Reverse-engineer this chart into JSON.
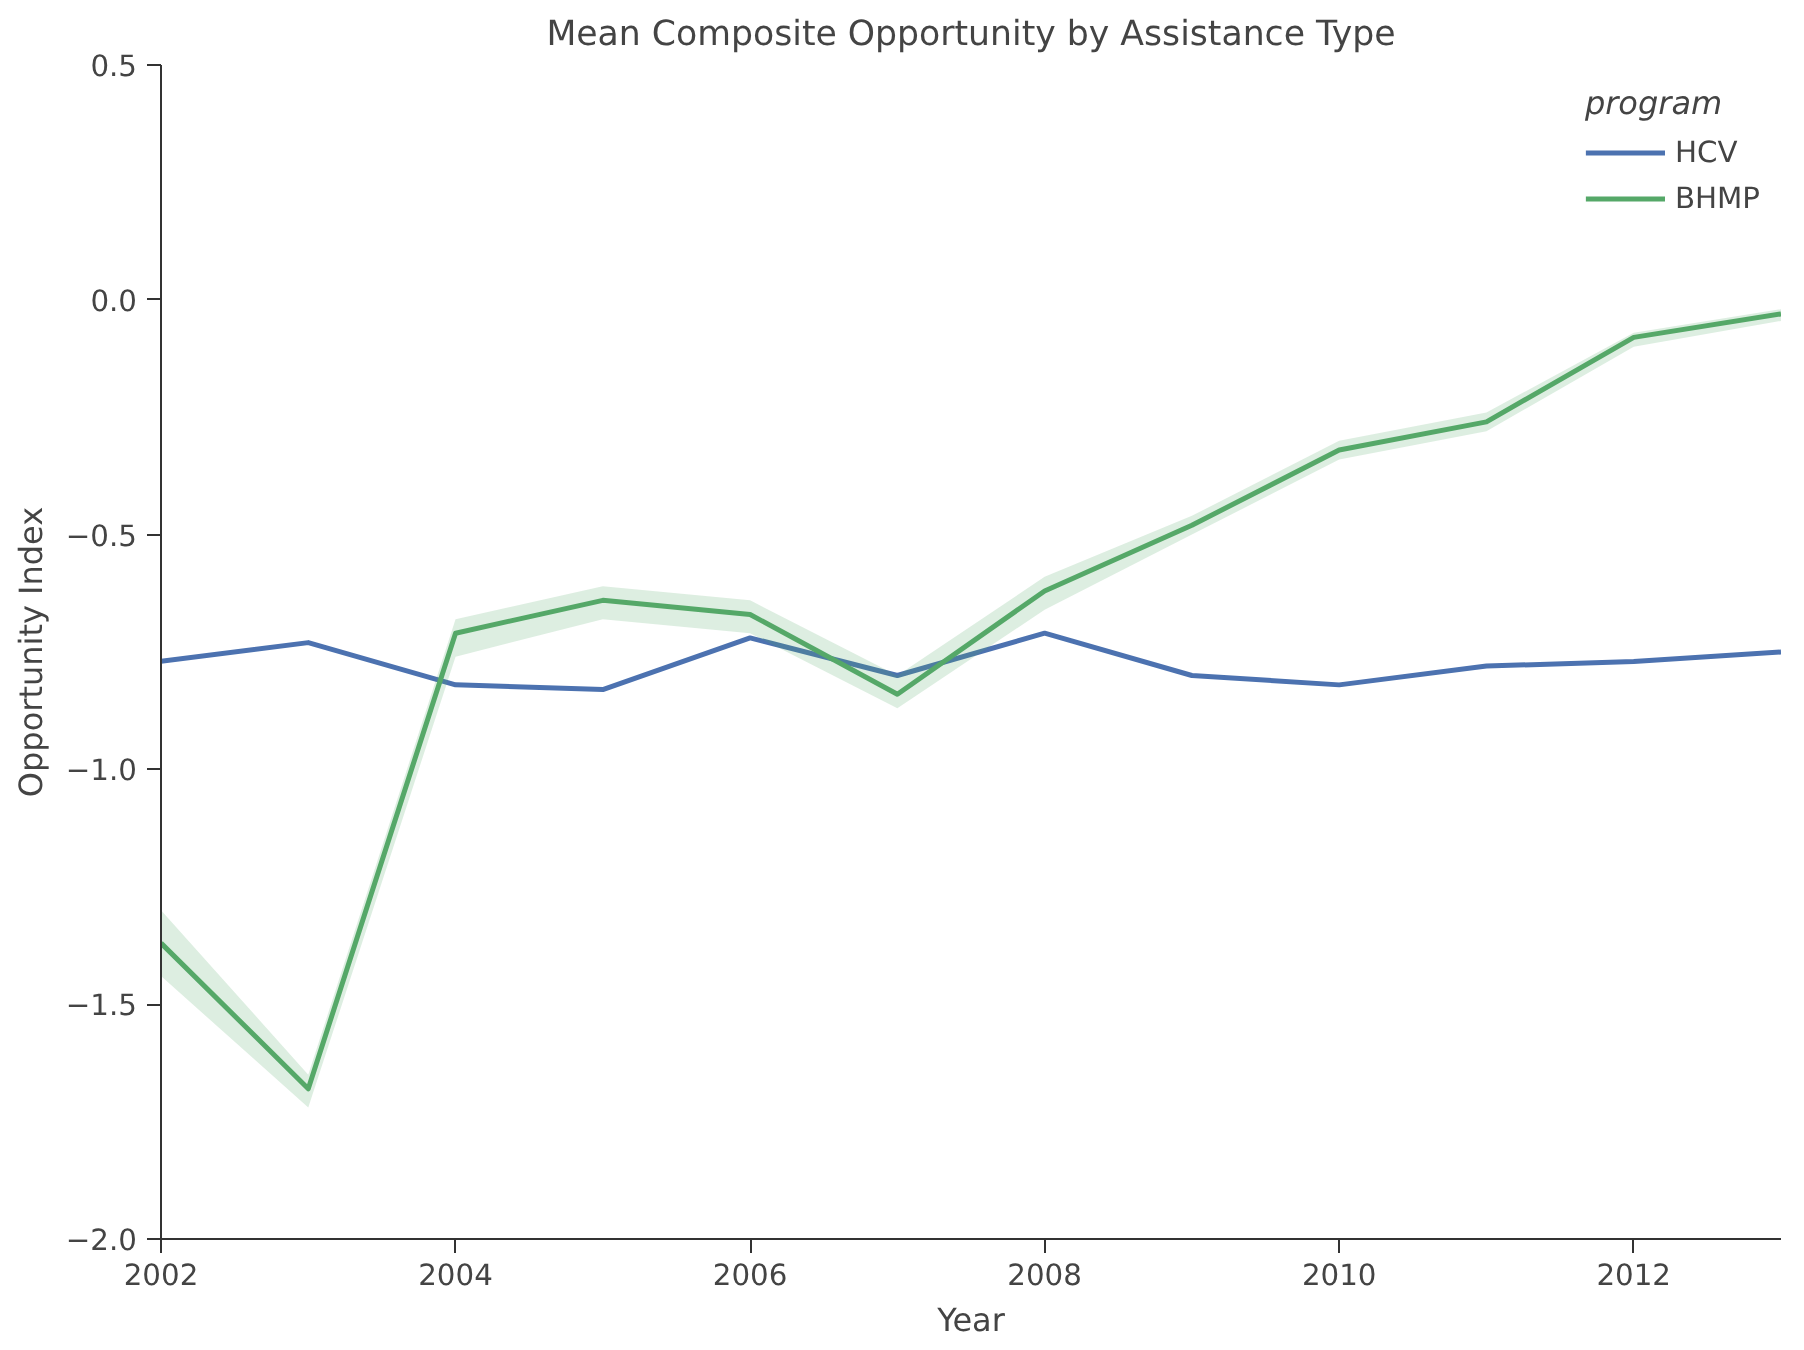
{
  "chart_data": {
    "type": "line",
    "title": "Mean Composite Opportunity by Assistance Type",
    "xlabel": "Year",
    "ylabel": "Opportunity Index",
    "legend_title": "program",
    "legend": "top right",
    "grid": false,
    "x": [
      2002,
      2003,
      2004,
      2005,
      2006,
      2007,
      2008,
      2009,
      2010,
      2011,
      2012,
      2013
    ],
    "xlim": [
      2002,
      2013
    ],
    "xticks": [
      2002,
      2004,
      2006,
      2008,
      2010,
      2012
    ],
    "ylim": [
      -2.0,
      0.5
    ],
    "yticks": [
      {
        "value": -2.0,
        "label": "−2.0"
      },
      {
        "value": -1.5,
        "label": "−1.5"
      },
      {
        "value": -1.0,
        "label": "−1.0"
      },
      {
        "value": -0.5,
        "label": "−0.5"
      },
      {
        "value": 0.0,
        "label": "0.0"
      },
      {
        "value": 0.5,
        "label": "0.5"
      }
    ],
    "series": [
      {
        "name": "HCV",
        "color": "#4c72b0",
        "values": [
          -0.77,
          -0.73,
          -0.82,
          -0.83,
          -0.72,
          -0.8,
          -0.71,
          -0.8,
          -0.82,
          -0.78,
          -0.77,
          -0.75
        ]
      },
      {
        "name": "BHMP",
        "color": "#55a868",
        "values": [
          -1.37,
          -1.68,
          -0.71,
          -0.64,
          -0.67,
          -0.84,
          -0.62,
          -0.48,
          -0.32,
          -0.26,
          -0.08,
          -0.03
        ],
        "lower": [
          -1.44,
          -1.72,
          -0.76,
          -0.68,
          -0.71,
          -0.87,
          -0.66,
          -0.5,
          -0.34,
          -0.28,
          -0.1,
          -0.045
        ],
        "upper": [
          -1.3,
          -1.65,
          -0.68,
          -0.61,
          -0.64,
          -0.8,
          -0.59,
          -0.46,
          -0.3,
          -0.24,
          -0.07,
          -0.02
        ]
      }
    ]
  }
}
